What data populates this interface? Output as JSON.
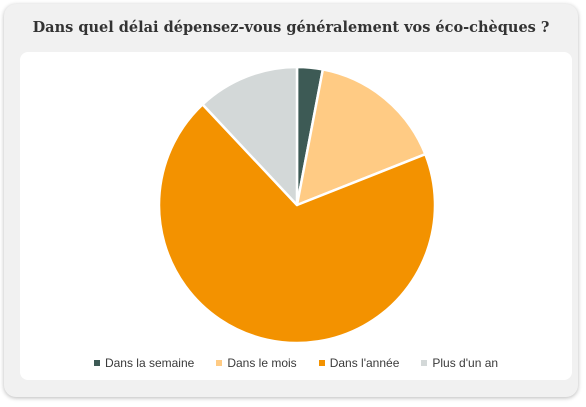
{
  "title": "Dans quel délai dépensez-vous généralement vos éco-chèques ?",
  "chart_data": {
    "type": "pie",
    "title": "Dans quel délai dépensez-vous généralement vos éco-chèques ?",
    "categories": [
      "Dans la semaine",
      "Dans le mois",
      "Dans l'année",
      "Plus d'un an"
    ],
    "values": [
      3,
      16,
      69,
      12
    ],
    "colors": [
      "#3d5a55",
      "#ffcb84",
      "#f39200",
      "#d3d8d8"
    ],
    "legend_position": "bottom",
    "start_angle": "top, clockwise"
  }
}
